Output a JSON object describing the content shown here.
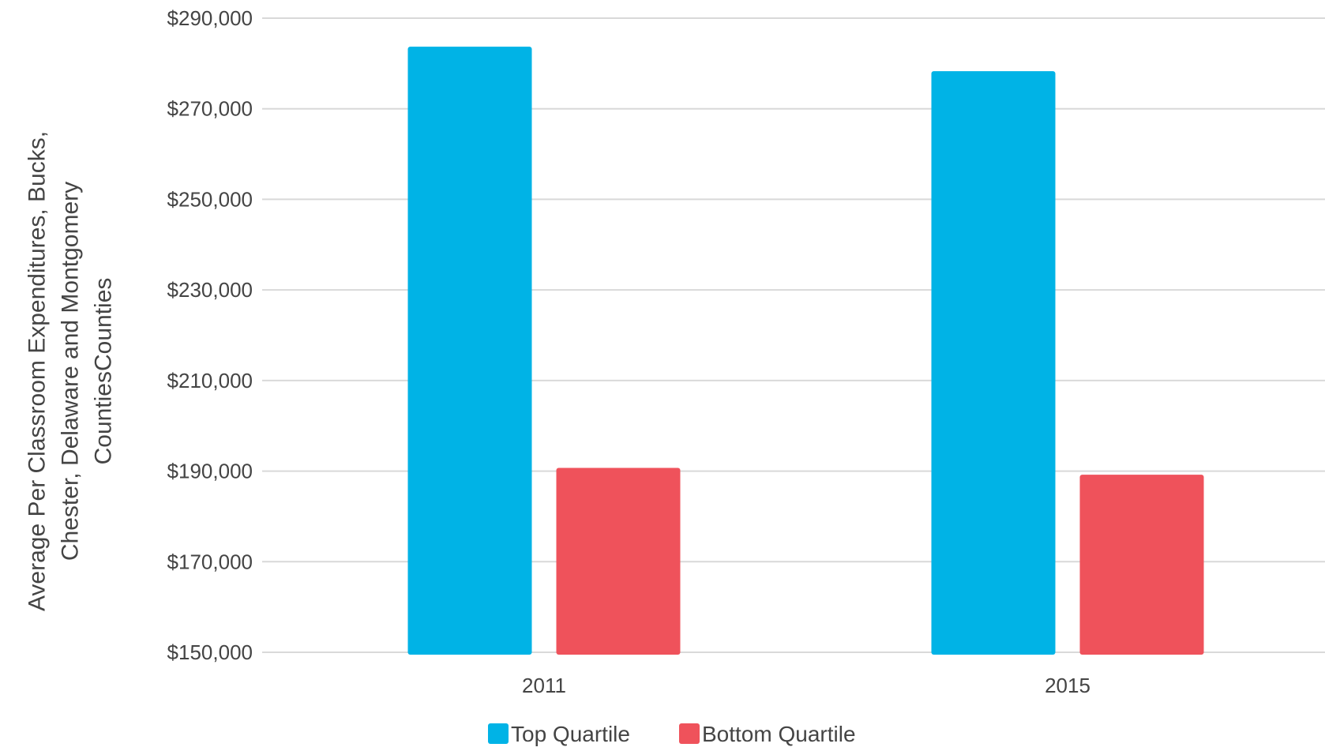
{
  "chart_data": {
    "type": "bar",
    "title": "",
    "xlabel": "",
    "ylabel_lines": [
      "Average Per Classroom Expenditures, Bucks,",
      "Chester, Delaware and Montgomery",
      "CountiesCounties"
    ],
    "categories": [
      "2011",
      "2015"
    ],
    "series": [
      {
        "name": "Top Quartile",
        "color": "#00B3E6",
        "values": [
          283700,
          278300
        ]
      },
      {
        "name": "Bottom Quartile",
        "color": "#EF525B",
        "values": [
          190700,
          189200
        ]
      }
    ],
    "ylim": [
      150000,
      290000
    ],
    "yticks": [
      150000,
      170000,
      190000,
      210000,
      230000,
      250000,
      270000,
      290000
    ],
    "ytick_labels": [
      "$150,000",
      "$170,000",
      "$190,000",
      "$210,000",
      "$230,000",
      "$250,000",
      "$270,000",
      "$290,000"
    ],
    "grid": true,
    "legend_position": "bottom-center"
  }
}
